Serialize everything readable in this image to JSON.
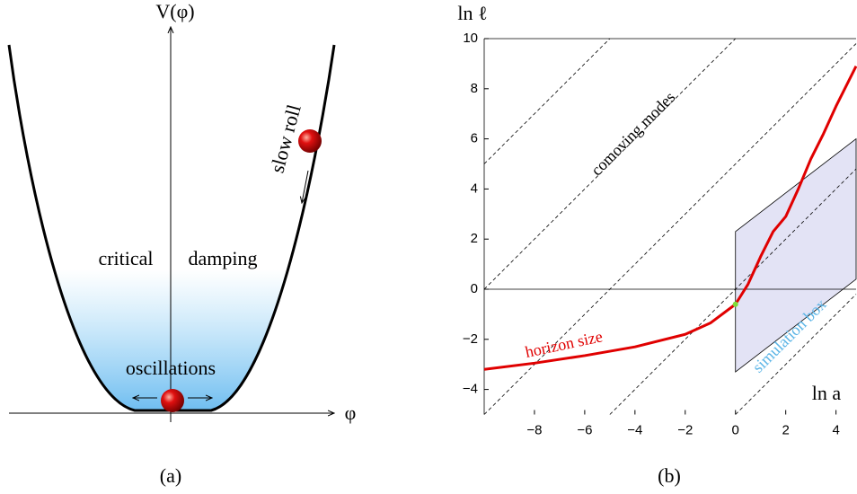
{
  "diagram": {
    "y_axis_label": "V(φ)",
    "x_axis_label": "φ",
    "labels": [
      "slow roll",
      "critical",
      "damping",
      "oscillations"
    ],
    "caption": "(a)"
  },
  "chart_data": {
    "type": "line",
    "caption": "(b)",
    "y_axis_label": "ln ℓ",
    "x_axis_label": "ln a",
    "xlim": [
      -10,
      4.8
    ],
    "ylim": [
      -5,
      10
    ],
    "xticks": [
      {
        "value": -8,
        "label": "−8"
      },
      {
        "value": -6,
        "label": "−6"
      },
      {
        "value": -4,
        "label": "−4"
      },
      {
        "value": -2,
        "label": "−2"
      },
      0,
      2,
      4
    ],
    "yticks": [
      {
        "value": -4,
        "label": "−4"
      },
      {
        "value": -2,
        "label": "−2"
      },
      0,
      2,
      4,
      6,
      8,
      10
    ],
    "x": [
      -10,
      -8,
      -6,
      -4,
      -2,
      -1,
      0,
      0.5,
      1,
      1.5,
      2,
      2.5,
      3,
      3.5,
      4,
      4.8
    ],
    "series": [
      {
        "name": "horizon size",
        "color": "#e00000",
        "values": [
          -3.2,
          -2.95,
          -2.65,
          -2.3,
          -1.8,
          -1.35,
          -0.6,
          0.2,
          1.3,
          2.3,
          2.9,
          4.0,
          5.2,
          6.2,
          7.3,
          8.9
        ]
      }
    ],
    "comoving_modes": {
      "label": "comoving modes",
      "slope": 1,
      "intercepts": [
        15,
        10,
        5,
        0,
        -5
      ]
    },
    "simulation_box": {
      "label": "simulation box",
      "color": "#dcdcf2",
      "x": [
        0,
        0,
        4.8,
        4.8
      ],
      "y": [
        -3.3,
        2.3,
        6,
        0.4
      ]
    },
    "marker": {
      "x": 0,
      "y": -0.6,
      "color": "#7fdc3a"
    }
  }
}
